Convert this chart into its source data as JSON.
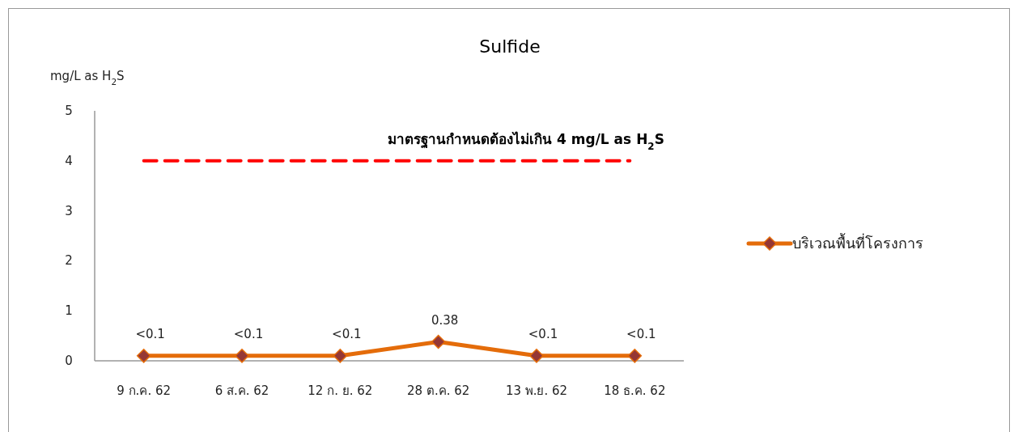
{
  "chart_data": {
    "type": "line",
    "title": "Sulfide",
    "ylabel": "mg/L as H$_{2}$S",
    "categories": [
      "9 ก.ค. 62",
      "6 ส.ค. 62",
      "12 ก. ย. 62",
      "28 ต.ค. 62",
      "13 พ.ย. 62",
      "18 ธ.ค. 62"
    ],
    "series": [
      {
        "name": "บริเวณพื้นที่โครงการ",
        "color": "#e46c0a",
        "values": [
          0.1,
          0.1,
          0.1,
          0.38,
          0.1,
          0.1
        ],
        "value_labels": [
          "<0.1",
          "<0.1",
          "<0.1",
          "0.38",
          "<0.1",
          "<0.1"
        ]
      }
    ],
    "ylim": [
      0,
      5
    ],
    "yticks": [
      0,
      1,
      2,
      3,
      4,
      5
    ],
    "marker": "diamond",
    "legend": "right",
    "ref_lines": [
      {
        "axis": "y",
        "value": 4,
        "label": "มาตรฐานกำหนดต้องไม่เกิน 4 mg/L as H$_{2}$S",
        "color": "#ff0000",
        "line_style": "dashed"
      }
    ]
  }
}
